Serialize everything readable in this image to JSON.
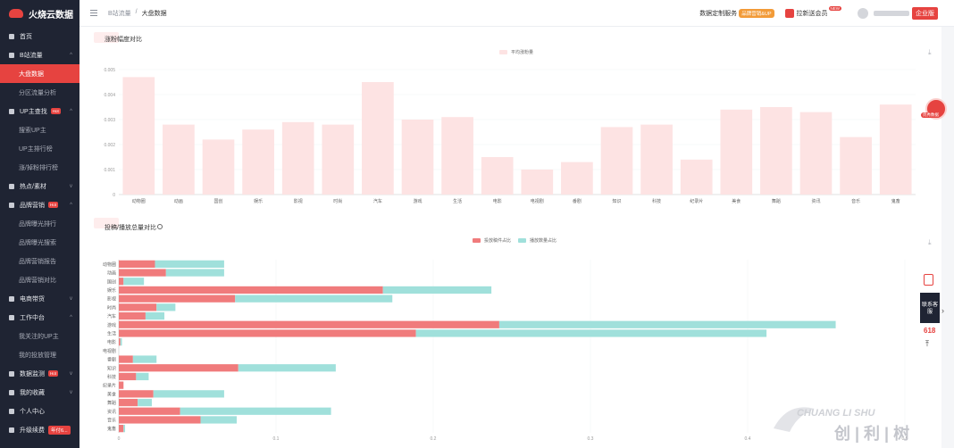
{
  "app": {
    "name": "火烧云数据"
  },
  "sidebar": {
    "items": [
      {
        "label": "首页",
        "kind": "group",
        "icon": "gear-icon"
      },
      {
        "label": "B站流量",
        "kind": "group",
        "icon": "bar-chart-icon",
        "caret": "^"
      },
      {
        "label": "大盘数据",
        "kind": "sub",
        "active": true
      },
      {
        "label": "分区流量分析",
        "kind": "sub"
      },
      {
        "label": "UP主查找",
        "kind": "group",
        "icon": "user-search-icon",
        "caret": "^",
        "hot": "Hot"
      },
      {
        "label": "搜索UP主",
        "kind": "sub"
      },
      {
        "label": "UP主排行榜",
        "kind": "sub"
      },
      {
        "label": "涨/掉粉排行榜",
        "kind": "sub"
      },
      {
        "label": "热点/素材",
        "kind": "group",
        "icon": "fire-icon",
        "caret": "v"
      },
      {
        "label": "品牌营销",
        "kind": "group",
        "icon": "target-icon",
        "caret": "^",
        "hot": "Hot"
      },
      {
        "label": "品牌曝光排行",
        "kind": "sub"
      },
      {
        "label": "品牌曝光搜索",
        "kind": "sub"
      },
      {
        "label": "品牌营销报告",
        "kind": "sub"
      },
      {
        "label": "品牌营销对比",
        "kind": "sub"
      },
      {
        "label": "电商带货",
        "kind": "group",
        "icon": "cart-icon",
        "caret": "v"
      },
      {
        "label": "工作中台",
        "kind": "group",
        "icon": "grid-icon",
        "caret": "^"
      },
      {
        "label": "我关注的UP主",
        "kind": "sub"
      },
      {
        "label": "我的投放管理",
        "kind": "sub"
      },
      {
        "label": "数据监测",
        "kind": "group",
        "icon": "monitor-icon",
        "caret": "v",
        "hot": "Hot"
      },
      {
        "label": "我的收藏",
        "kind": "group",
        "icon": "star-icon",
        "caret": "v"
      },
      {
        "label": "个人中心",
        "kind": "group",
        "icon": "person-icon"
      },
      {
        "label": "升级续费",
        "kind": "group",
        "icon": "upgrade-icon",
        "badge": "年付6..."
      }
    ]
  },
  "header": {
    "breadcrumb": [
      "B站流量",
      "/",
      "大盘数据"
    ],
    "custom_service": "数据定制服务",
    "custom_service_tag": "品牌营销&UP",
    "invite": "拉新送会员",
    "invite_badge": "NEW",
    "account_badge": "企业版"
  },
  "float": {
    "contact": "联系客服",
    "promo": "618",
    "badge_label": "优秀数据"
  },
  "watermark": {
    "latin": "CHUANG LI SHU",
    "cn": "创 | 利 | 树"
  },
  "colors": {
    "accent": "#e64340",
    "bar1": "#fde3e3",
    "bar2": "#f07b7c",
    "bar3": "#a0e0db"
  },
  "chart_data": [
    {
      "type": "bar",
      "title": "涨粉幅度对比",
      "legend": [
        "平均涨粉量"
      ],
      "categories": [
        "动物圈",
        "动画",
        "国创",
        "娱乐",
        "影视",
        "时尚",
        "汽车",
        "游戏",
        "生活",
        "电影",
        "电视剧",
        "番剧",
        "知识",
        "科技",
        "纪录片",
        "美食",
        "舞蹈",
        "资讯",
        "音乐",
        "鬼畜"
      ],
      "values": [
        0.0047,
        0.0028,
        0.0022,
        0.0026,
        0.0029,
        0.0028,
        0.0045,
        0.003,
        0.0031,
        0.0015,
        0.001,
        0.0013,
        0.0027,
        0.0028,
        0.0014,
        0.0034,
        0.0035,
        0.0033,
        0.0023,
        0.0036
      ],
      "yticks": [
        "0",
        "0.001",
        "0.002",
        "0.003",
        "0.004",
        "0.005"
      ],
      "ylim": [
        0,
        0.005
      ]
    },
    {
      "type": "bar",
      "orientation": "horizontal",
      "stacked": true,
      "title": "投稿/播放总量对比",
      "legend": [
        "投放稿件占比",
        "播放数量占比"
      ],
      "categories": [
        "动物圈",
        "动画",
        "国创",
        "娱乐",
        "影视",
        "时尚",
        "汽车",
        "游戏",
        "生活",
        "电影",
        "电视剧",
        "番剧",
        "知识",
        "科技",
        "纪录片",
        "美食",
        "舞蹈",
        "资讯",
        "音乐",
        "鬼畜"
      ],
      "series": [
        {
          "name": "投放稿件占比",
          "values": [
            0.023,
            0.03,
            0.003,
            0.168,
            0.074,
            0.024,
            0.017,
            0.242,
            0.189,
            0.001,
            0.0,
            0.009,
            0.076,
            0.011,
            0.003,
            0.022,
            0.012,
            0.039,
            0.052,
            0.003
          ]
        },
        {
          "name": "播放数量占比",
          "values": [
            0.044,
            0.037,
            0.013,
            0.069,
            0.1,
            0.012,
            0.012,
            0.214,
            0.223,
            0.001,
            0.0,
            0.015,
            0.062,
            0.008,
            0.0,
            0.045,
            0.009,
            0.096,
            0.023,
            0.001
          ]
        }
      ],
      "xticks": [
        "0",
        "0.1",
        "0.2",
        "0.3",
        "0.4",
        "0.5"
      ],
      "xlim": [
        0,
        0.5
      ]
    }
  ]
}
